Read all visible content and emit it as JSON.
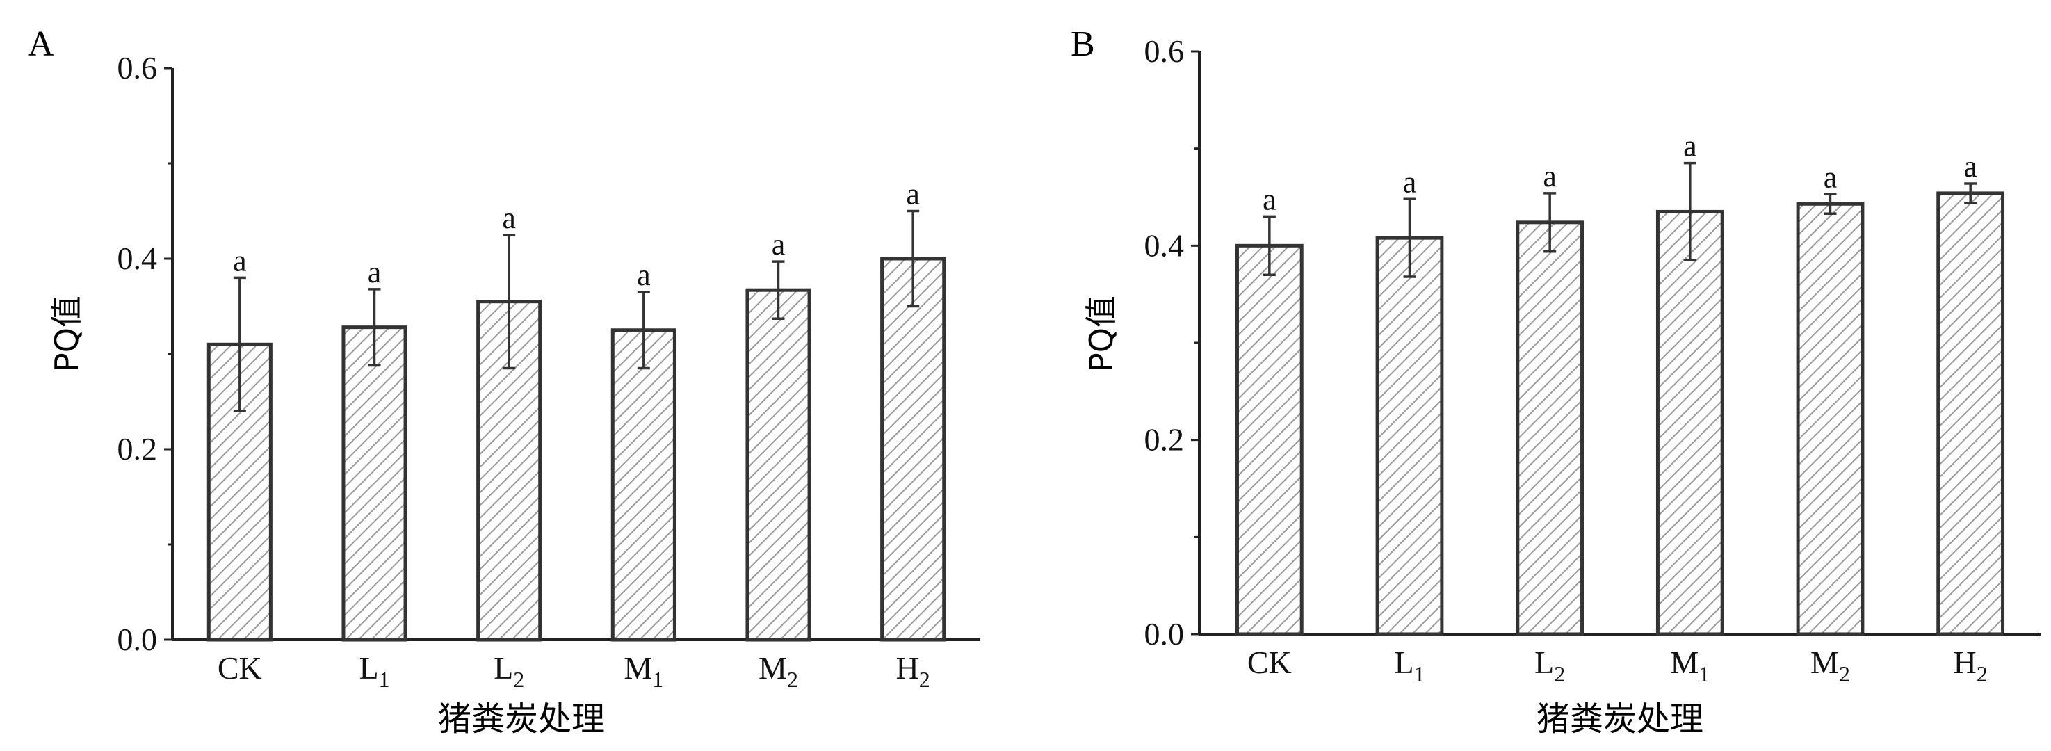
{
  "colors": {
    "axis": "#222222",
    "bar_edge": "#333333",
    "hatch": "#9a9a9a",
    "text": "#111111"
  },
  "chart_data": [
    {
      "type": "bar",
      "panel_label": "A",
      "categories": [
        {
          "base": "CK",
          "sub": ""
        },
        {
          "base": "L",
          "sub": "1"
        },
        {
          "base": "L",
          "sub": "2"
        },
        {
          "base": "M",
          "sub": "1"
        },
        {
          "base": "M",
          "sub": "2"
        },
        {
          "base": "H",
          "sub": "2"
        }
      ],
      "values": [
        0.31,
        0.328,
        0.355,
        0.325,
        0.367,
        0.4
      ],
      "errors": [
        0.07,
        0.04,
        0.07,
        0.04,
        0.03,
        0.05
      ],
      "significance": [
        "a",
        "a",
        "a",
        "a",
        "a",
        "a"
      ],
      "xlabel": "猪粪炭处理",
      "ylabel": "PQ值",
      "ylim": [
        0,
        0.6
      ],
      "yticks": [
        "0.0",
        "0.2",
        "0.4",
        "0.6"
      ],
      "grid": false,
      "bar_fill": "diagonal hatch"
    },
    {
      "type": "bar",
      "panel_label": "B",
      "categories": [
        {
          "base": "CK",
          "sub": ""
        },
        {
          "base": "L",
          "sub": "1"
        },
        {
          "base": "L",
          "sub": "2"
        },
        {
          "base": "M",
          "sub": "1"
        },
        {
          "base": "M",
          "sub": "2"
        },
        {
          "base": "H",
          "sub": "2"
        }
      ],
      "values": [
        0.4,
        0.408,
        0.424,
        0.435,
        0.443,
        0.454
      ],
      "errors": [
        0.03,
        0.04,
        0.03,
        0.05,
        0.01,
        0.01
      ],
      "significance": [
        "a",
        "a",
        "a",
        "a",
        "a",
        "a"
      ],
      "xlabel": "猪粪炭处理",
      "ylabel": "PQ值",
      "ylim": [
        0,
        0.6
      ],
      "yticks": [
        "0.0",
        "0.2",
        "0.4",
        "0.6"
      ],
      "grid": false,
      "bar_fill": "diagonal hatch"
    }
  ]
}
